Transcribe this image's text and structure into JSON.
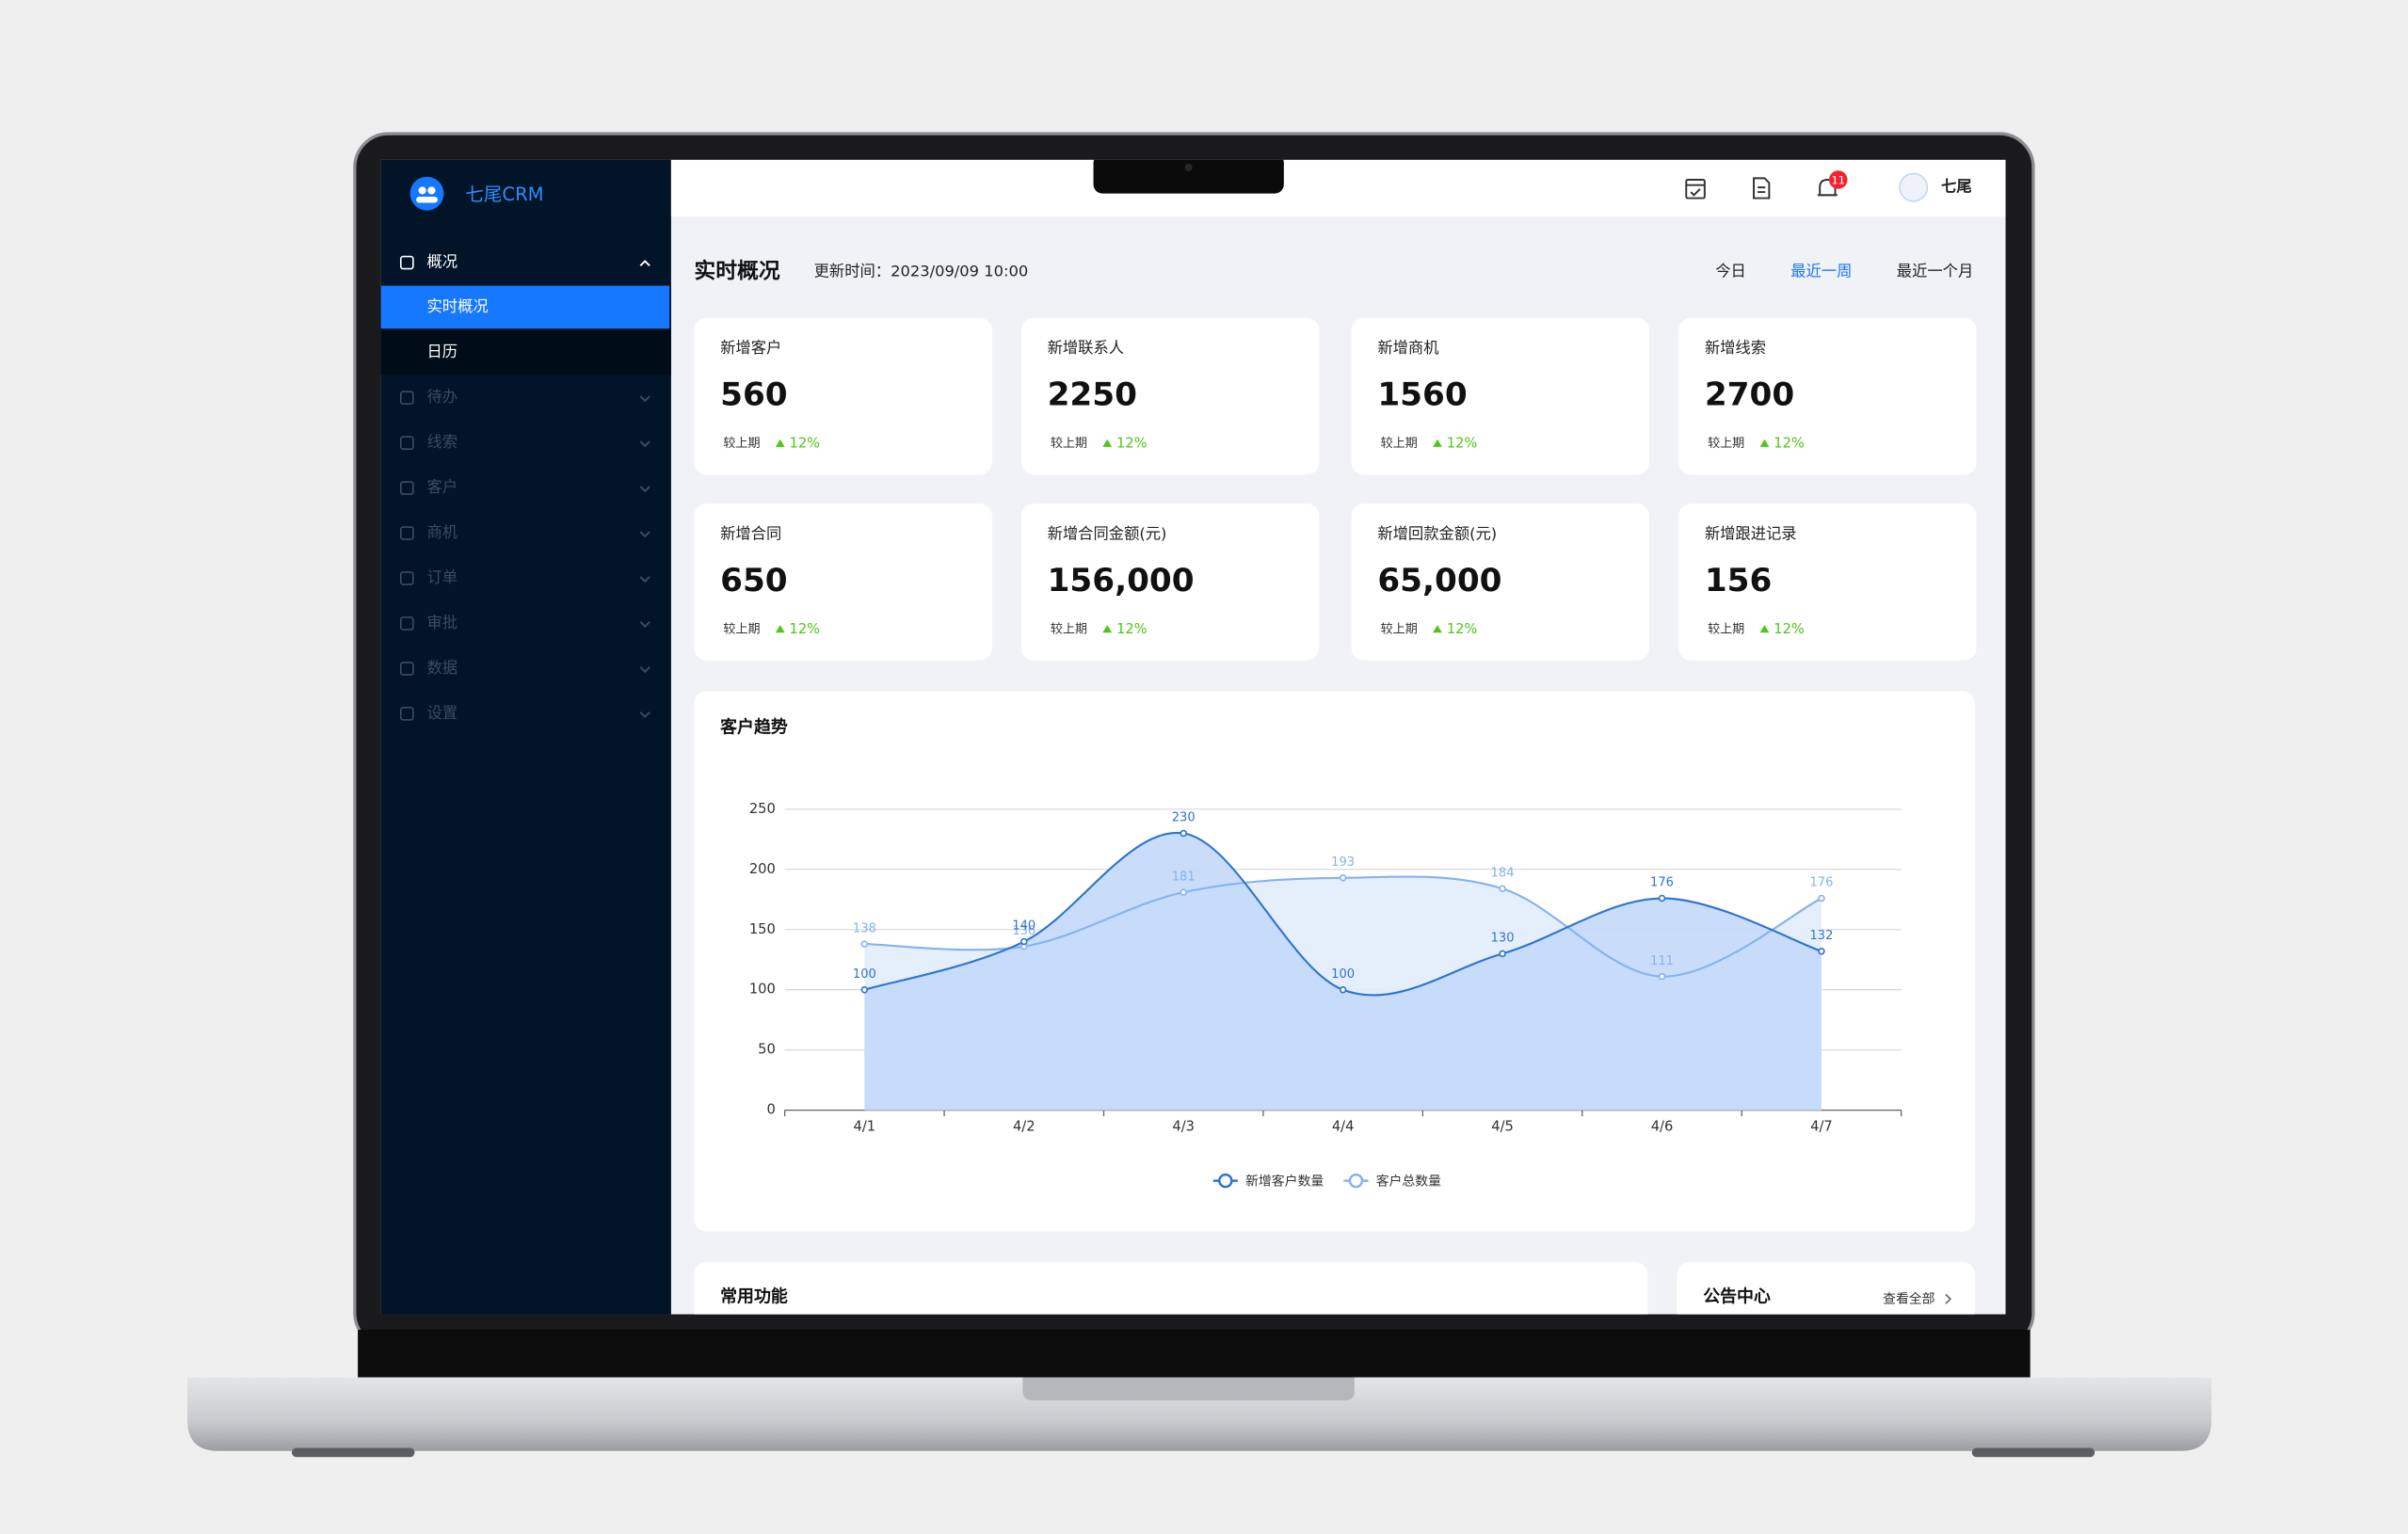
{
  "sidebar": {
    "logo": "七尾CRM",
    "menu": [
      {
        "label": "概况",
        "children": [
          "实时概况",
          "日历"
        ]
      },
      {
        "label": "待办"
      },
      {
        "label": "线索"
      },
      {
        "label": "客户"
      },
      {
        "label": "商机"
      },
      {
        "label": "订单"
      },
      {
        "label": "审批"
      },
      {
        "label": "数据"
      },
      {
        "label": "设置"
      }
    ]
  },
  "header": {
    "badge": 11,
    "user": "七尾"
  },
  "page": {
    "title": "实时概况",
    "updated": "更新时间：2023/09/09 10:00",
    "tabs": [
      "今日",
      "最近一周",
      "最近一个月"
    ],
    "active_tab": 1
  },
  "stats": [
    {
      "label": "新增客户",
      "value": "560",
      "compare": "较上期",
      "change": "12%"
    },
    {
      "label": "新增联系人",
      "value": "2250",
      "compare": "较上期",
      "change": "12%"
    },
    {
      "label": "新增商机",
      "value": "1560",
      "compare": "较上期",
      "change": "12%"
    },
    {
      "label": "新增线索",
      "value": "2700",
      "compare": "较上期",
      "change": "12%"
    },
    {
      "label": "新增合同",
      "value": "650",
      "compare": "较上期",
      "change": "12%"
    },
    {
      "label": "新增合同金额(元)",
      "value": "156,000",
      "compare": "较上期",
      "change": "12%"
    },
    {
      "label": "新增回款金额(元)",
      "value": "65,000",
      "compare": "较上期",
      "change": "12%"
    },
    {
      "label": "新增跟进记录",
      "value": "156",
      "compare": "较上期",
      "change": "12%"
    }
  ],
  "chart_data": {
    "type": "line",
    "title": "客户趋势",
    "categories": [
      "4/1",
      "4/2",
      "4/3",
      "4/4",
      "4/5",
      "4/6",
      "4/7"
    ],
    "series": [
      {
        "name": "新增客户数量",
        "color": "#2f74d0",
        "area_color": "#c3d9fa",
        "values": [
          100,
          140,
          230,
          100,
          130,
          176,
          132
        ]
      },
      {
        "name": "客户总数量",
        "color": "#86b2ee",
        "area_color": "#e2edfc",
        "values": [
          138,
          136,
          181,
          193,
          184,
          111,
          176
        ]
      }
    ],
    "ylim": [
      0,
      250
    ],
    "yticks": [
      0,
      50,
      100,
      150,
      200,
      250
    ],
    "grid": true,
    "smooth": true,
    "legend": "bottom"
  },
  "panels": [
    {
      "title": "常用功能"
    },
    {
      "title": "公告中心",
      "link": "查看全部"
    }
  ]
}
